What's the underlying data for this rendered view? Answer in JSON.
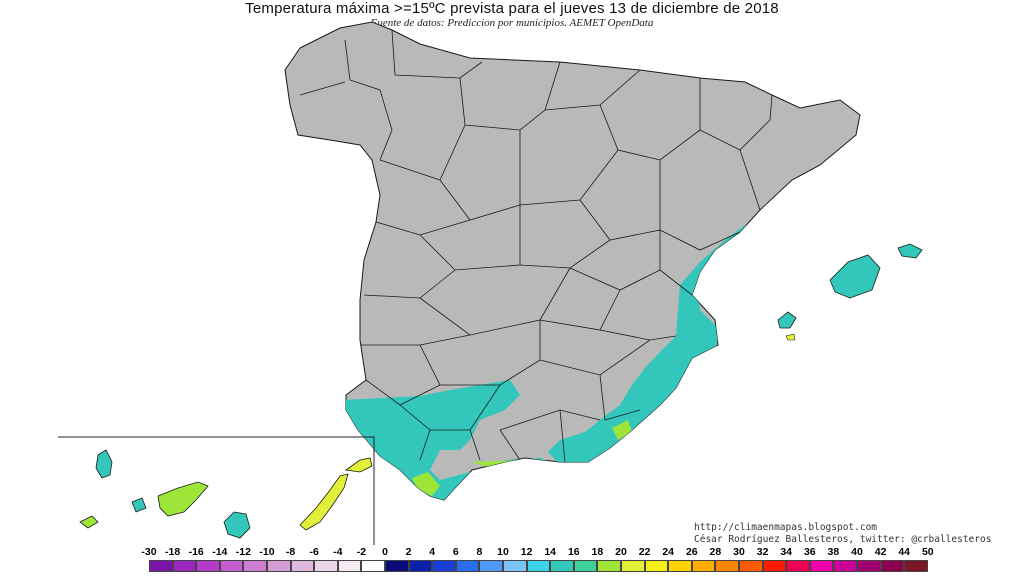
{
  "header": {
    "title": "Temperatura máxima >=15ºC prevista para el jueves 13 de diciembre de 2018",
    "subtitle": "Fuente de datos: Prediccion por municipios. AEMET OpenData"
  },
  "credits": {
    "url": "http://climaenmapas.blogspot.com",
    "author": "César Rodríguez Ballesteros, twitter: @crballesteros"
  },
  "colors": {
    "land": "#b9b9b9",
    "warm_15_18": "#33c6bb",
    "warm_18_20": "#9ee53a",
    "warm_20_22": "#e3f03a",
    "borders": "#1a1a1a"
  },
  "legend": {
    "ticks": [
      "-30",
      "-18",
      "-16",
      "-14",
      "-12",
      "-10",
      "-8",
      "-6",
      "-4",
      "-2",
      "0",
      "2",
      "4",
      "6",
      "8",
      "10",
      "12",
      "14",
      "16",
      "18",
      "20",
      "22",
      "24",
      "26",
      "28",
      "30",
      "32",
      "34",
      "36",
      "38",
      "40",
      "42",
      "44",
      "50"
    ],
    "colors": [
      "#7a14a8",
      "#9a26bf",
      "#b43cc9",
      "#c55cd0",
      "#cc7dd0",
      "#d69cd6",
      "#e0b8de",
      "#ebd5e8",
      "#f5eaf2",
      "#ffffff",
      "#0a0a7a",
      "#0c1fa8",
      "#1a3fd6",
      "#2a6df0",
      "#4f9af6",
      "#7cc4f8",
      "#3bd2ea",
      "#33c6bb",
      "#3fd09c",
      "#9ee53a",
      "#e3f03a",
      "#f6ee1a",
      "#ffd200",
      "#ffac00",
      "#ff8600",
      "#ff5a00",
      "#ff1b00",
      "#ee0055",
      "#ee00aa",
      "#cc0099",
      "#a0006f",
      "#8c004f",
      "#7a1626"
    ]
  }
}
